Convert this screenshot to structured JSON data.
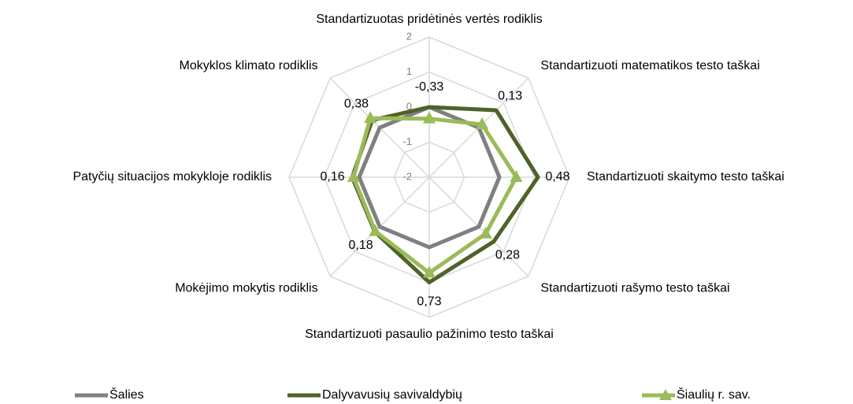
{
  "chart_data": {
    "type": "radar",
    "categories": [
      "Standartizuotas pridėtinės vertės rodiklis",
      "Standartizuoti matematikos testo taškai",
      "Standartizuoti skaitymo testo taškai",
      "Standartizuoti rašymo testo taškai",
      "Standartizuoti pasaulio pažinimo testo taškai",
      "Mokėjimo mokytis rodiklis",
      "Patyčių situacijos mokykloje rodiklis",
      "Mokyklos klimato rodiklis"
    ],
    "series": [
      {
        "name": "Šalies",
        "color": "#808080",
        "values": [
          0,
          0,
          0,
          0,
          0,
          0,
          0,
          0
        ]
      },
      {
        "name": "Dalyvavusių savivaldybių",
        "color": "#4f6228",
        "values": [
          0,
          0.7,
          1.1,
          0.6,
          1.0,
          0.2,
          0.2,
          0.3
        ]
      },
      {
        "name": "Šiaulių r. sav.",
        "color": "#9bbb59",
        "marker": "triangle",
        "values": [
          -0.33,
          0.13,
          0.48,
          0.28,
          0.73,
          0.18,
          0.16,
          0.38
        ],
        "value_labels": [
          "-0,33",
          "0,13",
          "0,48",
          "0,28",
          "0,73",
          "0,18",
          "0,16",
          "0,38"
        ]
      }
    ],
    "ylim": [
      -2,
      2
    ],
    "yticks": [
      -2,
      -1,
      0,
      1,
      2
    ],
    "grid": true,
    "legend": "bottom"
  }
}
